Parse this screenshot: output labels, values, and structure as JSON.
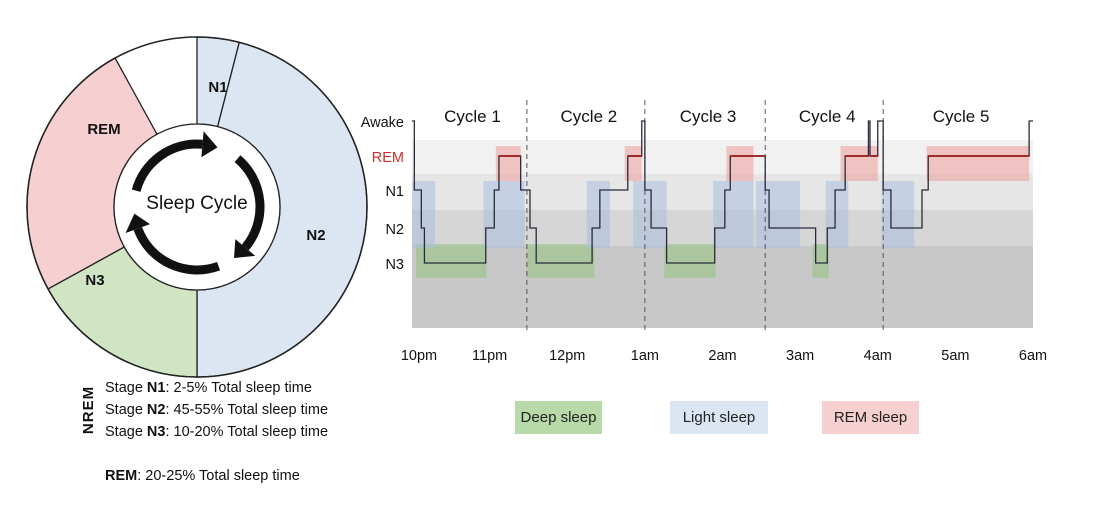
{
  "donut": {
    "center_label": "Sleep Cycle",
    "segments": [
      {
        "id": "N1",
        "label": "N1",
        "share": 0.04,
        "color": "#dce6f2"
      },
      {
        "id": "N2",
        "label": "N2",
        "share": 0.46,
        "color": "#dce6f2"
      },
      {
        "id": "N3",
        "label": "N3",
        "share": 0.17,
        "color": "#cfe5c4"
      },
      {
        "id": "REM",
        "label": "REM",
        "share": 0.25,
        "color": "#f6d0d0"
      }
    ]
  },
  "nrem_label": "NREM",
  "stage_notes": [
    {
      "prefix": "Stage ",
      "stage": "N1",
      "text": ": 2-5% Total sleep time"
    },
    {
      "prefix": "Stage ",
      "stage": "N2",
      "text": ": 45-55% Total sleep time"
    },
    {
      "prefix": "Stage ",
      "stage": "N3",
      "text": ": 10-20% Total sleep time"
    }
  ],
  "rem_note": {
    "stage": "REM",
    "text": ": 20-25% Total sleep time"
  },
  "chart_data": {
    "type": "line",
    "title": "",
    "stages": [
      "Awake",
      "REM",
      "N1",
      "N2",
      "N3"
    ],
    "x_labels": [
      "10pm",
      "11pm",
      "12pm",
      "1am",
      "2am",
      "3am",
      "4am",
      "5am",
      "6am"
    ],
    "x_range_hours": [
      0,
      8
    ],
    "cycles": [
      {
        "label": "Cycle 1",
        "start": 0,
        "end": 1.48
      },
      {
        "label": "Cycle 2",
        "start": 1.48,
        "end": 3.0
      },
      {
        "label": "Cycle 3",
        "start": 3.0,
        "end": 4.55
      },
      {
        "label": "Cycle 4",
        "start": 4.55,
        "end": 6.07
      },
      {
        "label": "Cycle 5",
        "start": 6.07,
        "end": 8
      }
    ],
    "hypnogram": [
      [
        0.0,
        "Awake"
      ],
      [
        0.03,
        "N1"
      ],
      [
        0.12,
        "N2"
      ],
      [
        0.16,
        "N3"
      ],
      [
        0.95,
        "N2"
      ],
      [
        1.06,
        "N1"
      ],
      [
        1.12,
        "REM"
      ],
      [
        1.4,
        "N1"
      ],
      [
        1.52,
        "N2"
      ],
      [
        1.6,
        "N3"
      ],
      [
        2.32,
        "N2"
      ],
      [
        2.42,
        "N1"
      ],
      [
        2.78,
        "REM"
      ],
      [
        2.96,
        "Awake"
      ],
      [
        3.0,
        "N1"
      ],
      [
        3.08,
        "N2"
      ],
      [
        3.28,
        "N3"
      ],
      [
        3.9,
        "N2"
      ],
      [
        4.03,
        "N1"
      ],
      [
        4.1,
        "REM"
      ],
      [
        4.55,
        "N1"
      ],
      [
        4.6,
        "N2"
      ],
      [
        5.2,
        "N3"
      ],
      [
        5.35,
        "N2"
      ],
      [
        5.45,
        "N1"
      ],
      [
        5.58,
        "REM"
      ],
      [
        5.88,
        "Awake"
      ],
      [
        5.9,
        "REM"
      ],
      [
        6.0,
        "Awake"
      ],
      [
        6.07,
        "N1"
      ],
      [
        6.17,
        "N2"
      ],
      [
        6.57,
        "N1"
      ],
      [
        6.65,
        "REM"
      ],
      [
        7.95,
        "Awake"
      ],
      [
        8.0,
        "Awake"
      ]
    ],
    "highlights": [
      {
        "stage": "N3",
        "start": 0.05,
        "end": 0.96
      },
      {
        "stage": "N3",
        "start": 1.48,
        "end": 2.35
      },
      {
        "stage": "N3",
        "start": 3.25,
        "end": 3.91
      },
      {
        "stage": "N3",
        "start": 5.16,
        "end": 5.37
      },
      {
        "stage": "N2",
        "start": 0.0,
        "end": 0.3
      },
      {
        "stage": "N2",
        "start": 0.92,
        "end": 1.45
      },
      {
        "stage": "N2",
        "start": 2.25,
        "end": 2.55
      },
      {
        "stage": "N2",
        "start": 2.85,
        "end": 3.28
      },
      {
        "stage": "N2",
        "start": 3.88,
        "end": 4.4
      },
      {
        "stage": "N2",
        "start": 4.43,
        "end": 5.0
      },
      {
        "stage": "N2",
        "start": 5.33,
        "end": 5.62
      },
      {
        "stage": "N2",
        "start": 6.05,
        "end": 6.47
      },
      {
        "stage": "REM",
        "start": 1.08,
        "end": 1.4
      },
      {
        "stage": "REM",
        "start": 2.74,
        "end": 2.96
      },
      {
        "stage": "REM",
        "start": 4.05,
        "end": 4.4
      },
      {
        "stage": "REM",
        "start": 5.52,
        "end": 6.0
      },
      {
        "stage": "REM",
        "start": 6.63,
        "end": 7.95
      }
    ],
    "legend": [
      {
        "label": "Deep sleep",
        "color": "#b8d9a8"
      },
      {
        "label": "Light sleep",
        "color": "#dce6f2"
      },
      {
        "label": "REM sleep",
        "color": "#f6d0d0"
      }
    ],
    "colors": {
      "rem_label": "#d0302a",
      "hypnogram_line": "#2a2a3a",
      "deep": "#93c47d",
      "light": "#a9bfe0",
      "rem": "#ef9d9d"
    }
  }
}
